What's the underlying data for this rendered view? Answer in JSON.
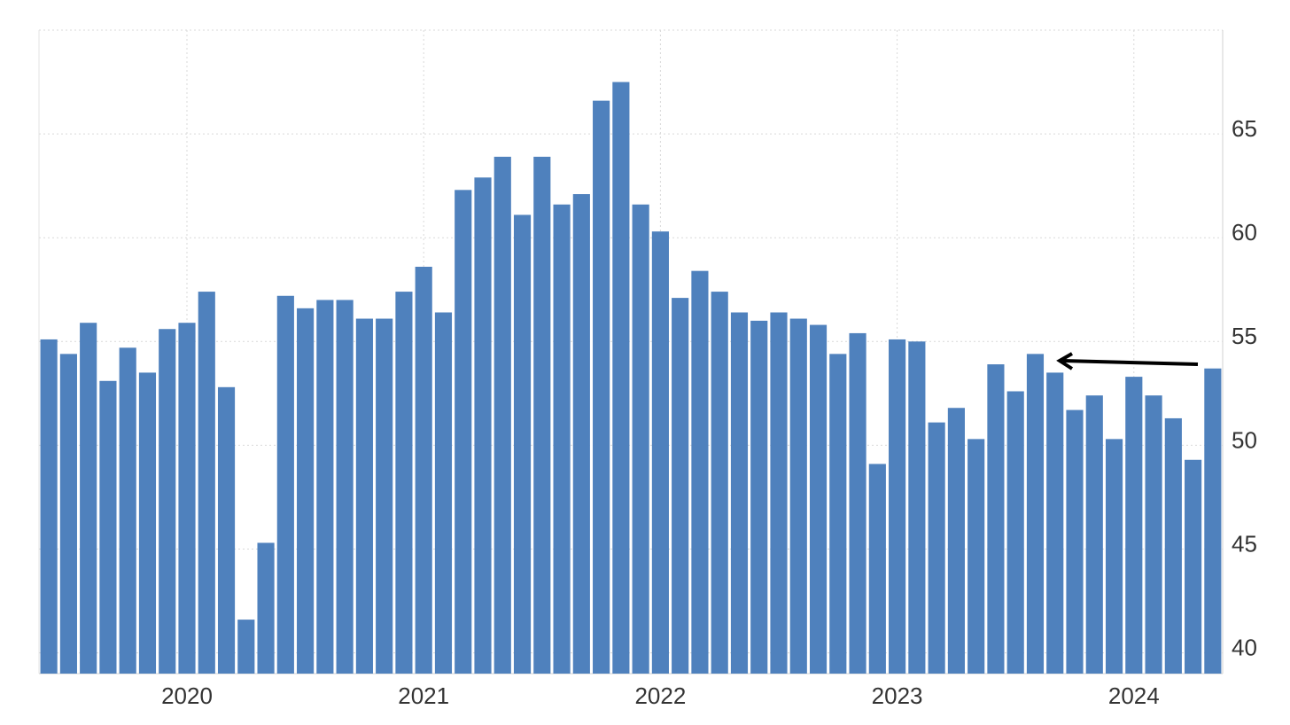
{
  "chart_data": {
    "type": "bar",
    "categories": [
      null,
      null,
      null,
      null,
      null,
      null,
      null,
      "2020",
      null,
      null,
      null,
      null,
      null,
      null,
      null,
      null,
      null,
      null,
      null,
      "2021",
      null,
      null,
      null,
      null,
      null,
      null,
      null,
      null,
      null,
      null,
      null,
      "2022",
      null,
      null,
      null,
      null,
      null,
      null,
      null,
      null,
      null,
      null,
      null,
      "2023",
      null,
      null,
      null,
      null,
      null,
      null,
      null,
      null,
      null,
      null,
      null,
      "2024",
      null,
      null,
      null,
      null
    ],
    "values": [
      55.1,
      54.4,
      55.9,
      53.1,
      54.7,
      53.5,
      55.6,
      55.9,
      57.4,
      52.8,
      41.6,
      45.3,
      57.2,
      56.6,
      57.0,
      57.0,
      56.1,
      56.1,
      57.4,
      58.6,
      56.4,
      62.3,
      62.9,
      63.9,
      61.1,
      63.9,
      61.6,
      62.1,
      66.6,
      67.5,
      61.6,
      60.3,
      57.1,
      58.4,
      57.4,
      56.4,
      56.0,
      56.4,
      56.1,
      55.8,
      54.4,
      55.4,
      49.1,
      55.1,
      55.0,
      51.1,
      51.8,
      50.3,
      53.9,
      52.6,
      54.4,
      53.5,
      51.7,
      52.4,
      50.3,
      53.3,
      52.4,
      51.3,
      49.3,
      53.7
    ],
    "color": "#4f81bd",
    "ylim": [
      39,
      70
    ],
    "yticks": [
      40,
      45,
      50,
      55,
      60,
      65
    ],
    "grid": true
  }
}
